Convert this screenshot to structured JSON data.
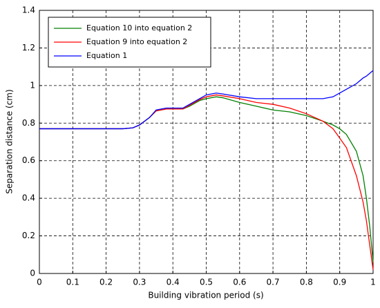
{
  "chart_data": {
    "type": "line",
    "x_label": "Building vibration period (s)",
    "y_label": "Separation distance (cm)",
    "x": [
      0,
      0.1,
      0.2,
      0.25,
      0.28,
      0.3,
      0.33,
      0.35,
      0.38,
      0.4,
      0.43,
      0.45,
      0.48,
      0.5,
      0.53,
      0.55,
      0.6,
      0.65,
      0.7,
      0.75,
      0.8,
      0.85,
      0.88,
      0.9,
      0.92,
      0.95,
      0.97,
      0.98,
      0.99,
      1.0
    ],
    "series": [
      {
        "name": "Equation 10 into equation 2",
        "color": "#007f00",
        "values": [
          0.77,
          0.77,
          0.77,
          0.77,
          0.775,
          0.79,
          0.83,
          0.865,
          0.875,
          0.875,
          0.875,
          0.89,
          0.92,
          0.93,
          0.94,
          0.935,
          0.91,
          0.89,
          0.87,
          0.86,
          0.84,
          0.81,
          0.79,
          0.77,
          0.74,
          0.65,
          0.52,
          0.4,
          0.25,
          0.06
        ]
      },
      {
        "name": "Equation 9 into equation 2",
        "color": "#ff0000",
        "values": [
          0.77,
          0.77,
          0.77,
          0.77,
          0.775,
          0.79,
          0.83,
          0.865,
          0.875,
          0.875,
          0.875,
          0.895,
          0.925,
          0.94,
          0.95,
          0.945,
          0.93,
          0.91,
          0.9,
          0.88,
          0.85,
          0.81,
          0.77,
          0.72,
          0.67,
          0.52,
          0.38,
          0.28,
          0.15,
          0.02
        ]
      },
      {
        "name": "Equation 1",
        "color": "#0000ff",
        "values": [
          0.77,
          0.77,
          0.77,
          0.77,
          0.775,
          0.79,
          0.83,
          0.87,
          0.88,
          0.88,
          0.88,
          0.9,
          0.93,
          0.95,
          0.96,
          0.955,
          0.94,
          0.93,
          0.93,
          0.93,
          0.93,
          0.93,
          0.94,
          0.96,
          0.98,
          1.01,
          1.04,
          1.05,
          1.065,
          1.08
        ]
      }
    ],
    "xlim": [
      0,
      1
    ],
    "xticks": [
      0,
      0.1,
      0.2,
      0.3,
      0.4,
      0.5,
      0.6,
      0.7,
      0.8,
      0.9,
      1
    ],
    "ylim": [
      0,
      1.4
    ],
    "yticks": [
      0,
      0.2,
      0.4,
      0.6,
      0.8,
      1,
      1.2,
      1.4
    ],
    "grid": true,
    "legend": "upper left"
  }
}
